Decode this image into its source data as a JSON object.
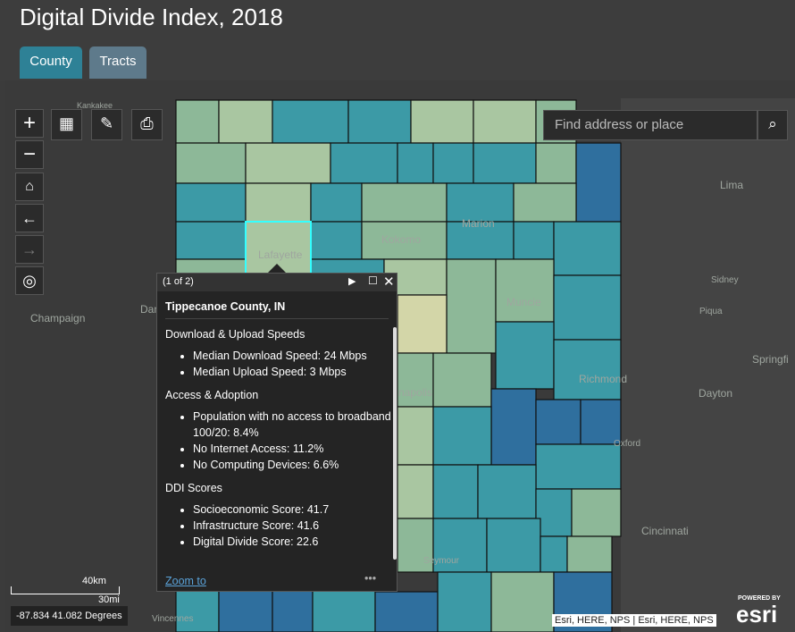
{
  "header": {
    "title": "Digital Divide Index, 2018"
  },
  "tabs": [
    "County",
    "Tracts"
  ],
  "search": {
    "placeholder": "Find address or place"
  },
  "map_labels": [
    "Kankakee",
    "Lafayette",
    "Kokomo",
    "Marion",
    "Muncie",
    "Champaign",
    "Dan",
    "Lima",
    "Sidney",
    "Piqua",
    "Springfi",
    "Richmond",
    "Dayton",
    "Oxford",
    "Cincinnati",
    "Seymour",
    "napolis",
    "Vincennes"
  ],
  "popup": {
    "pager": "(1 of 2)",
    "title": "Tippecanoe County, IN",
    "sections": [
      {
        "heading": "Download & Upload Speeds",
        "items": [
          "Median Download Speed: 24 Mbps",
          "Median Upload Speed: 3 Mbps"
        ]
      },
      {
        "heading": "Access & Adoption",
        "items": [
          "Population with no access to broadband 100/20: 8.4%",
          "No Internet Access: 11.2%",
          "No Computing Devices: 6.6%"
        ]
      },
      {
        "heading": "DDI Scores",
        "items": [
          "Socioeconomic Score: 41.7",
          "Infrastructure Score: 41.6",
          "Digital Divide Score: 22.6"
        ]
      }
    ],
    "zoom": "Zoom to"
  },
  "scale": {
    "km": "40km",
    "mi": "30mi"
  },
  "coordinates": "-87.834 41.082 Degrees",
  "attribution": "Esri, HERE, NPS | Esri, HERE, NPS",
  "powered_by": "POWERED BY",
  "brand": "esri"
}
